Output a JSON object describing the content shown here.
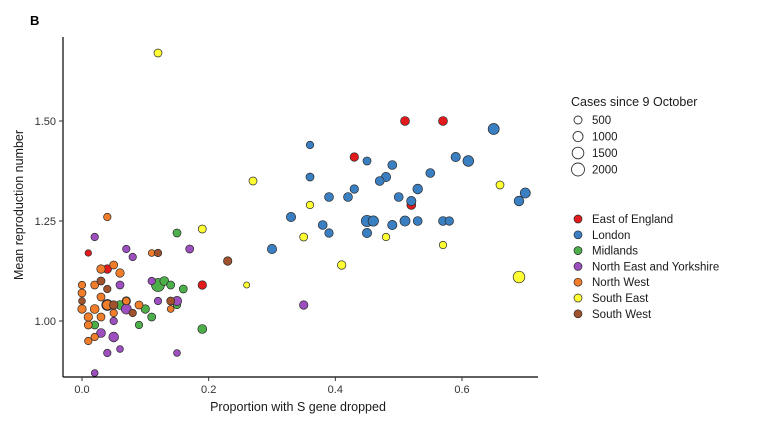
{
  "chart_data": {
    "type": "scatter",
    "panel_label": "B",
    "xlabel": "Proportion with S gene dropped",
    "ylabel": "Mean reproduction number",
    "xlim": [
      -0.03,
      0.72
    ],
    "ylim": [
      0.86,
      1.71
    ],
    "x_ticks": [
      0.0,
      0.2,
      0.4,
      0.6
    ],
    "x_tick_labels": [
      "0.0",
      "0.2",
      "0.4",
      "0.6"
    ],
    "y_ticks": [
      1.0,
      1.25,
      1.5
    ],
    "y_tick_labels": [
      "1.00",
      "1.25",
      "1.50"
    ],
    "grid": false,
    "size_legend": {
      "title": "Cases since 9 October",
      "labels": [
        "500",
        "1000",
        "1500",
        "2000"
      ],
      "values": [
        500,
        1000,
        1500,
        2000
      ]
    },
    "color_legend": [
      {
        "name": "East of England",
        "color": "#e31a1c"
      },
      {
        "name": "London",
        "color": "#3a7fc1"
      },
      {
        "name": "Midlands",
        "color": "#4daf4a"
      },
      {
        "name": "North East and Yorkshire",
        "color": "#9d4fbf"
      },
      {
        "name": "North West",
        "color": "#f07d2a"
      },
      {
        "name": "South East",
        "color": "#ffff33"
      },
      {
        "name": "South West",
        "color": "#a0522d"
      }
    ],
    "series": [
      {
        "name": "East of England",
        "color": "#e31a1c",
        "points": [
          [
            0.51,
            1.5,
            700
          ],
          [
            0.57,
            1.5,
            700
          ],
          [
            0.43,
            1.41,
            600
          ],
          [
            0.52,
            1.29,
            700
          ],
          [
            0.19,
            1.09,
            600
          ],
          [
            0.04,
            1.13,
            600
          ],
          [
            0.43,
            1.33,
            300
          ],
          [
            0.01,
            1.17,
            250
          ]
        ]
      },
      {
        "name": "London",
        "color": "#3a7fc1",
        "points": [
          [
            0.65,
            1.48,
            1300
          ],
          [
            0.61,
            1.4,
            1200
          ],
          [
            0.59,
            1.41,
            800
          ],
          [
            0.7,
            1.32,
            1000
          ],
          [
            0.69,
            1.3,
            900
          ],
          [
            0.55,
            1.37,
            700
          ],
          [
            0.53,
            1.33,
            900
          ],
          [
            0.52,
            1.3,
            800
          ],
          [
            0.5,
            1.31,
            700
          ],
          [
            0.49,
            1.39,
            700
          ],
          [
            0.48,
            1.36,
            800
          ],
          [
            0.47,
            1.35,
            700
          ],
          [
            0.45,
            1.4,
            500
          ],
          [
            0.43,
            1.33,
            600
          ],
          [
            0.42,
            1.31,
            700
          ],
          [
            0.39,
            1.31,
            700
          ],
          [
            0.36,
            1.36,
            500
          ],
          [
            0.36,
            1.44,
            400
          ],
          [
            0.33,
            1.26,
            800
          ],
          [
            0.38,
            1.24,
            700
          ],
          [
            0.39,
            1.22,
            600
          ],
          [
            0.45,
            1.25,
            1400
          ],
          [
            0.46,
            1.25,
            1100
          ],
          [
            0.45,
            1.22,
            800
          ],
          [
            0.49,
            1.24,
            800
          ],
          [
            0.51,
            1.25,
            1000
          ],
          [
            0.53,
            1.25,
            700
          ],
          [
            0.57,
            1.25,
            700
          ],
          [
            0.58,
            1.25,
            600
          ],
          [
            0.3,
            1.18,
            800
          ]
        ]
      },
      {
        "name": "Midlands",
        "color": "#4daf4a",
        "points": [
          [
            0.12,
            1.09,
            2000
          ],
          [
            0.13,
            1.1,
            700
          ],
          [
            0.14,
            1.09,
            500
          ],
          [
            0.15,
            1.22,
            500
          ],
          [
            0.19,
            0.98,
            700
          ],
          [
            0.16,
            1.08,
            500
          ],
          [
            0.06,
            1.04,
            700
          ],
          [
            0.07,
            1.05,
            600
          ],
          [
            0.11,
            1.01,
            500
          ],
          [
            0.09,
            0.99,
            400
          ],
          [
            0.02,
            0.99,
            500
          ],
          [
            0.1,
            1.03,
            600
          ],
          [
            0.15,
            1.04,
            400
          ],
          [
            0.03,
            1.06,
            400
          ]
        ]
      },
      {
        "name": "North East and Yorkshire",
        "color": "#9d4fbf",
        "points": [
          [
            0.04,
            1.04,
            1300
          ],
          [
            0.07,
            1.03,
            1000
          ],
          [
            0.05,
            0.96,
            900
          ],
          [
            0.03,
            0.97,
            700
          ],
          [
            0.15,
            1.05,
            800
          ],
          [
            0.17,
            1.18,
            500
          ],
          [
            0.35,
            1.04,
            600
          ],
          [
            0.07,
            1.18,
            400
          ],
          [
            0.08,
            1.16,
            400
          ],
          [
            0.02,
            1.21,
            400
          ],
          [
            0.04,
            0.92,
            400
          ],
          [
            0.02,
            0.87,
            300
          ],
          [
            0.15,
            0.92,
            300
          ],
          [
            0.06,
            1.09,
            500
          ],
          [
            0.11,
            1.1,
            400
          ],
          [
            0.12,
            1.05,
            400
          ],
          [
            0.05,
            1.0,
            400
          ],
          [
            0.06,
            0.93,
            300
          ]
        ]
      },
      {
        "name": "North West",
        "color": "#f07d2a",
        "points": [
          [
            0.04,
            1.04,
            900
          ],
          [
            0.02,
            1.03,
            700
          ],
          [
            0.0,
            1.03,
            600
          ],
          [
            0.01,
            1.01,
            600
          ],
          [
            0.01,
            0.99,
            500
          ],
          [
            0.03,
            1.01,
            500
          ],
          [
            0.04,
            1.26,
            400
          ],
          [
            0.06,
            1.12,
            600
          ],
          [
            0.05,
            1.14,
            500
          ],
          [
            0.03,
            1.13,
            600
          ],
          [
            0.0,
            1.07,
            500
          ],
          [
            0.02,
            1.09,
            500
          ],
          [
            0.02,
            0.96,
            400
          ],
          [
            0.01,
            0.95,
            400
          ],
          [
            0.03,
            1.06,
            500
          ],
          [
            0.09,
            1.04,
            500
          ],
          [
            0.11,
            1.17,
            300
          ],
          [
            0.14,
            1.03,
            300
          ],
          [
            0.0,
            1.09,
            400
          ],
          [
            0.05,
            1.02,
            400
          ],
          [
            0.07,
            1.05,
            400
          ]
        ]
      },
      {
        "name": "South East",
        "color": "#ffff33",
        "points": [
          [
            0.12,
            1.67,
            500
          ],
          [
            0.27,
            1.35,
            500
          ],
          [
            0.19,
            1.23,
            500
          ],
          [
            0.35,
            1.21,
            500
          ],
          [
            0.36,
            1.29,
            400
          ],
          [
            0.41,
            1.14,
            600
          ],
          [
            0.48,
            1.21,
            400
          ],
          [
            0.57,
            1.19,
            400
          ],
          [
            0.66,
            1.34,
            500
          ],
          [
            0.69,
            1.11,
            1500
          ],
          [
            0.26,
            1.09,
            200
          ]
        ]
      },
      {
        "name": "South West",
        "color": "#a0522d",
        "points": [
          [
            0.05,
            1.04,
            600
          ],
          [
            0.03,
            1.1,
            500
          ],
          [
            0.12,
            1.17,
            400
          ],
          [
            0.14,
            1.05,
            500
          ],
          [
            0.08,
            1.02,
            400
          ],
          [
            0.23,
            1.15,
            600
          ],
          [
            0.04,
            1.08,
            400
          ],
          [
            0.0,
            1.05,
            300
          ]
        ]
      }
    ]
  }
}
